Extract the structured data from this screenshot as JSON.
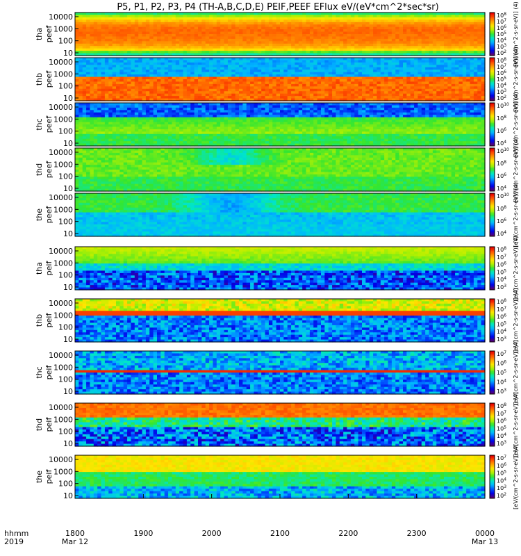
{
  "title": "P5, P1, P2, P3, P4 (TH-A,B,C,D,E) PEIF,PEEF EFlux eV/(eV*cm^2*sec*sr)",
  "colors": {
    "scale": [
      "#5a006e",
      "#0000e6",
      "#0050ff",
      "#00b4ff",
      "#00e6c8",
      "#32e632",
      "#b4f000",
      "#ffe600",
      "#ffa000",
      "#ff5000",
      "#e60000"
    ]
  },
  "chart_data": {
    "type": "heatmap",
    "title": "P5, P1, P2, P3, P4 (TH-A,B,C,D,E) PEIF,PEEF EFlux eV/(eV*cm^2*sec*sr)",
    "x_label_row1": "hhmm",
    "x_label_row2": "2019",
    "xlim": [
      "1800",
      "0000"
    ],
    "x_ticks": [
      {
        "v": 1800,
        "label": "1800",
        "sub": "Mar 12"
      },
      {
        "v": 1900,
        "label": "1900",
        "sub": ""
      },
      {
        "v": 2000,
        "label": "2000",
        "sub": ""
      },
      {
        "v": 2100,
        "label": "2100",
        "sub": ""
      },
      {
        "v": 2200,
        "label": "2200",
        "sub": ""
      },
      {
        "v": 2300,
        "label": "2300",
        "sub": ""
      },
      {
        "v": 2400,
        "label": "0000",
        "sub": "Mar 13"
      }
    ],
    "y_scale": "log",
    "y_ticks": [
      "10",
      "100",
      "1000",
      "10000"
    ],
    "colorbar_unit": "[eV/(cm^2-s-sr-eV)] (4)",
    "panels": [
      {
        "probe": "tha",
        "product": "peef",
        "colorbar_ticks": [
          "10^2",
          "10^3",
          "10^4",
          "10^5",
          "10^6",
          "10^7",
          "10^8"
        ],
        "mode": "eef_hot"
      },
      {
        "probe": "thb",
        "product": "peef",
        "colorbar_ticks": [
          "10^2",
          "10^3",
          "10^4",
          "10^5",
          "10^6",
          "10^7",
          "10^8"
        ],
        "mode": "eef_b"
      },
      {
        "probe": "thc",
        "product": "peef",
        "colorbar_ticks": [
          "10^4",
          "10^6",
          "10^8",
          "10^10"
        ],
        "mode": "eef_c"
      },
      {
        "probe": "thd",
        "product": "peef",
        "colorbar_ticks": [
          "10^4",
          "10^6",
          "10^8",
          "10^10"
        ],
        "mode": "eef_d"
      },
      {
        "probe": "the",
        "product": "peef",
        "colorbar_ticks": [
          "10^4",
          "10^6",
          "10^8",
          "10^10"
        ],
        "mode": "eef_e"
      },
      {
        "probe": "tha",
        "product": "peif",
        "colorbar_ticks": [
          "10^3",
          "10^4",
          "10^5",
          "10^6",
          "10^7",
          "10^8"
        ],
        "mode": "eif_a"
      },
      {
        "probe": "thb",
        "product": "peif",
        "colorbar_ticks": [
          "10^3",
          "10^4",
          "10^5",
          "10^6",
          "10^7",
          "10^8"
        ],
        "mode": "eif_b"
      },
      {
        "probe": "thc",
        "product": "peif",
        "colorbar_ticks": [
          "10^3",
          "10^4",
          "10^5",
          "10^6",
          "10^7"
        ],
        "mode": "eif_c"
      },
      {
        "probe": "thd",
        "product": "peif",
        "colorbar_ticks": [
          "10^3",
          "10^4",
          "10^5",
          "10^6",
          "10^7",
          "10^8"
        ],
        "mode": "eif_d"
      },
      {
        "probe": "the",
        "product": "peif",
        "colorbar_ticks": [
          "10^2",
          "10^3",
          "10^4",
          "10^5",
          "10^6",
          "10^7"
        ],
        "mode": "eif_e"
      }
    ]
  }
}
